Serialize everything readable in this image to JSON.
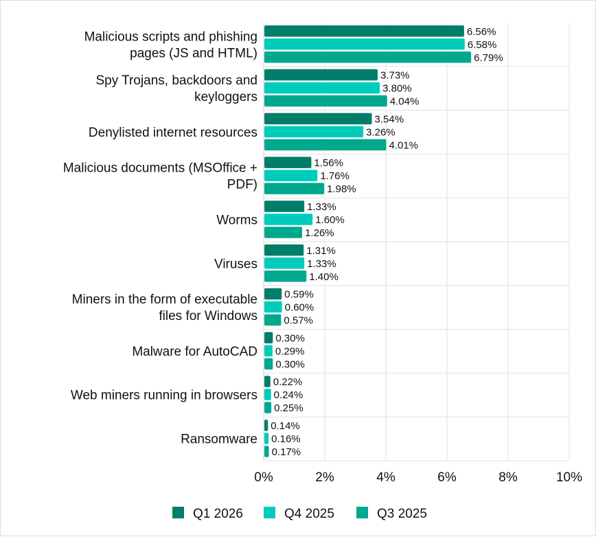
{
  "chart_data": {
    "type": "bar",
    "orientation": "horizontal",
    "categories": [
      "Malicious scripts and phishing pages (JS and HTML)",
      "Spy Trojans, backdoors and keyloggers",
      "Denylisted internet resources",
      "Malicious documents (MSOffice + PDF)",
      "Worms",
      "Viruses",
      "Miners in the form of executable files for Windows",
      "Malware for AutoCAD",
      "Web miners running in browsers",
      "Ransomware"
    ],
    "category_lines": [
      [
        "Malicious scripts and phishing",
        "pages (JS and HTML)"
      ],
      [
        "Spy Trojans, backdoors and",
        "keyloggers"
      ],
      [
        "Denylisted internet resources"
      ],
      [
        "Malicious documents (MSOffice +",
        "PDF)"
      ],
      [
        "Worms"
      ],
      [
        "Viruses"
      ],
      [
        "Miners in the form of executable",
        "files for Windows"
      ],
      [
        "Malware for AutoCAD"
      ],
      [
        "Web miners running in browsers"
      ],
      [
        "Ransomware"
      ]
    ],
    "series": [
      {
        "name": "Q1 2026",
        "color": "#007e6a",
        "values": [
          6.56,
          3.73,
          3.54,
          1.56,
          1.33,
          1.31,
          0.59,
          0.3,
          0.22,
          0.14
        ]
      },
      {
        "name": "Q4 2025",
        "color": "#00ccbc",
        "values": [
          6.58,
          3.8,
          3.26,
          1.76,
          1.6,
          1.33,
          0.6,
          0.29,
          0.24,
          0.16
        ]
      },
      {
        "name": "Q3 2025",
        "color": "#00a88e",
        "values": [
          6.79,
          4.04,
          4.01,
          1.98,
          1.26,
          1.4,
          0.57,
          0.3,
          0.25,
          0.17
        ]
      }
    ],
    "xlim": [
      0,
      10
    ],
    "xticks": [
      0,
      2,
      4,
      6,
      8,
      10
    ],
    "tick_suffix": "%",
    "value_suffix": "%",
    "grid": true,
    "legend_position": "bottom-center"
  }
}
